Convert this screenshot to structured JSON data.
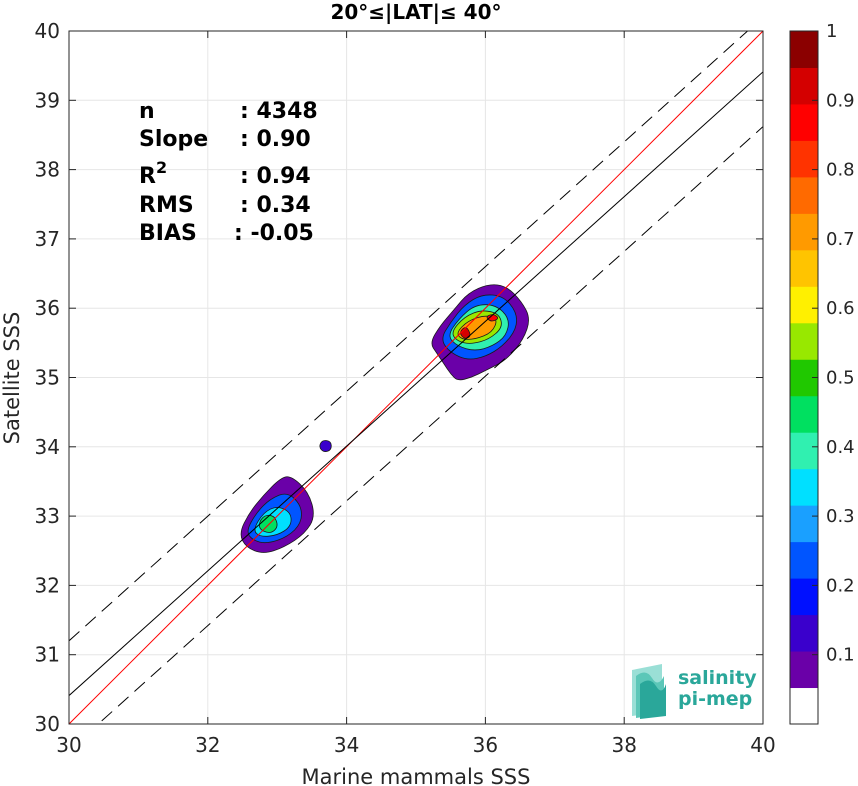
{
  "chart_data": {
    "type": "scatter",
    "title": "20°≤|LAT|≤ 40°",
    "xlabel": "Marine mammals SSS",
    "ylabel": "Satellite SSS",
    "xlim": [
      30,
      40
    ],
    "ylim": [
      30,
      40
    ],
    "xticks": [
      "30",
      "32",
      "34",
      "36",
      "38",
      "40"
    ],
    "yticks": [
      "30",
      "31",
      "32",
      "33",
      "34",
      "35",
      "36",
      "37",
      "38",
      "39",
      "40"
    ],
    "grid": true,
    "stats": [
      {
        "key": "n",
        "sup": "",
        "value": ": 4348"
      },
      {
        "key": "Slope",
        "sup": "",
        "value": ": 0.90"
      },
      {
        "key": "R",
        "sup": "2",
        "value": ": 0.94"
      },
      {
        "key": "RMS",
        "sup": "",
        "value": ": 0.34"
      },
      {
        "key": "BIAS",
        "sup": "",
        "value": ": -0.05"
      }
    ],
    "lines": [
      {
        "role": "identity",
        "color": "#ff0000",
        "style": "solid",
        "slope": 1.0,
        "intercept": 0.0
      },
      {
        "role": "regression",
        "color": "#000000",
        "style": "solid",
        "slope": 0.9,
        "intercept": 3.41
      },
      {
        "role": "upper-bound",
        "color": "#000000",
        "style": "dashed",
        "slope": 0.9,
        "intercept": 4.2
      },
      {
        "role": "lower-bound",
        "color": "#000000",
        "style": "dashed",
        "slope": 0.9,
        "intercept": 2.62
      }
    ],
    "density_clusters": [
      {
        "name": "cluster-north",
        "center": [
          35.9,
          35.75
        ],
        "levels": [
          [
            0.05,
            [
              [
                35.2,
                35.5
              ],
              [
                35.35,
                35.75
              ],
              [
                35.55,
                35.98
              ],
              [
                35.75,
                36.22
              ],
              [
                36.05,
                36.35
              ],
              [
                36.3,
                36.32
              ],
              [
                36.52,
                36.1
              ],
              [
                36.65,
                35.85
              ],
              [
                36.55,
                35.55
              ],
              [
                36.3,
                35.25
              ],
              [
                36.0,
                35.1
              ],
              [
                35.8,
                35.0
              ],
              [
                35.6,
                34.95
              ],
              [
                35.5,
                35.05
              ],
              [
                35.4,
                35.2
              ],
              [
                35.3,
                35.35
              ]
            ]
          ],
          [
            0.2,
            [
              [
                35.35,
                35.55
              ],
              [
                35.5,
                35.8
              ],
              [
                35.7,
                36.05
              ],
              [
                35.95,
                36.2
              ],
              [
                36.25,
                36.18
              ],
              [
                36.45,
                35.95
              ],
              [
                36.45,
                35.7
              ],
              [
                36.25,
                35.45
              ],
              [
                36.0,
                35.3
              ],
              [
                35.75,
                35.25
              ],
              [
                35.5,
                35.35
              ]
            ]
          ],
          [
            0.35,
            [
              [
                35.45,
                35.6
              ],
              [
                35.62,
                35.85
              ],
              [
                35.85,
                36.05
              ],
              [
                36.15,
                36.05
              ],
              [
                36.35,
                35.85
              ],
              [
                36.3,
                35.6
              ],
              [
                36.1,
                35.45
              ],
              [
                35.85,
                35.38
              ],
              [
                35.6,
                35.45
              ]
            ]
          ],
          [
            0.5,
            [
              [
                35.5,
                35.65
              ],
              [
                35.7,
                35.88
              ],
              [
                35.95,
                35.98
              ],
              [
                36.2,
                35.92
              ],
              [
                36.25,
                35.72
              ],
              [
                36.05,
                35.55
              ],
              [
                35.8,
                35.48
              ],
              [
                35.6,
                35.52
              ]
            ]
          ],
          [
            0.7,
            [
              [
                35.58,
                35.65
              ],
              [
                35.75,
                35.82
              ],
              [
                36.0,
                35.9
              ],
              [
                36.18,
                35.85
              ],
              [
                36.1,
                35.65
              ],
              [
                35.85,
                35.55
              ],
              [
                35.65,
                35.55
              ]
            ]
          ],
          [
            0.9,
            [
              [
                35.62,
                35.65
              ],
              [
                35.72,
                35.75
              ],
              [
                35.8,
                35.6
              ],
              [
                35.7,
                35.55
              ]
            ]
          ],
          [
            0.85,
            [
              [
                36.0,
                35.88
              ],
              [
                36.12,
                35.92
              ],
              [
                36.2,
                35.85
              ],
              [
                36.08,
                35.8
              ]
            ]
          ]
        ]
      },
      {
        "name": "cluster-south",
        "center": [
          32.9,
          32.9
        ],
        "levels": [
          [
            0.05,
            [
              [
                32.45,
                32.75
              ],
              [
                32.6,
                33.05
              ],
              [
                32.8,
                33.3
              ],
              [
                33.05,
                33.55
              ],
              [
                33.2,
                33.58
              ],
              [
                33.45,
                33.35
              ],
              [
                33.55,
                33.0
              ],
              [
                33.4,
                32.75
              ],
              [
                33.1,
                32.55
              ],
              [
                32.8,
                32.45
              ],
              [
                32.55,
                32.55
              ]
            ]
          ],
          [
            0.2,
            [
              [
                32.55,
                32.78
              ],
              [
                32.7,
                33.05
              ],
              [
                32.9,
                33.25
              ],
              [
                33.15,
                33.35
              ],
              [
                33.35,
                33.15
              ],
              [
                33.35,
                32.9
              ],
              [
                33.15,
                32.7
              ],
              [
                32.85,
                32.6
              ],
              [
                32.65,
                32.65
              ]
            ]
          ],
          [
            0.3,
            [
              [
                32.65,
                32.8
              ],
              [
                32.8,
                33.05
              ],
              [
                33.0,
                33.15
              ],
              [
                33.2,
                33.05
              ],
              [
                33.2,
                32.85
              ],
              [
                33.0,
                32.72
              ],
              [
                32.75,
                32.7
              ]
            ]
          ],
          [
            0.42,
            [
              [
                32.72,
                32.82
              ],
              [
                32.78,
                33.0
              ],
              [
                32.95,
                33.02
              ],
              [
                33.02,
                32.85
              ],
              [
                32.9,
                32.74
              ]
            ]
          ]
        ]
      },
      {
        "name": "cluster-isolated",
        "center": [
          33.7,
          34.0
        ],
        "levels": [
          [
            0.1,
            [
              [
                33.6,
                34.0
              ],
              [
                33.65,
                34.1
              ],
              [
                33.78,
                34.08
              ],
              [
                33.78,
                33.95
              ],
              [
                33.67,
                33.92
              ]
            ]
          ]
        ]
      }
    ],
    "colorbar": {
      "ticks": [
        "0.1",
        "0.2",
        "0.3",
        "0.4",
        "0.5",
        "0.6",
        "0.7",
        "0.8",
        "0.9",
        "1"
      ],
      "colors": [
        "#ffffff",
        "#6a00a8",
        "#3a00cc",
        "#0010ff",
        "#0055ff",
        "#1aa0ff",
        "#00e0ff",
        "#30f0b0",
        "#00e060",
        "#20c800",
        "#98e800",
        "#fff000",
        "#ffc400",
        "#ff9a00",
        "#ff6a00",
        "#ff3300",
        "#ff0000",
        "#d40000",
        "#8b0000"
      ]
    },
    "logo": {
      "line1": "salinity",
      "line2": "pi-mep"
    }
  }
}
